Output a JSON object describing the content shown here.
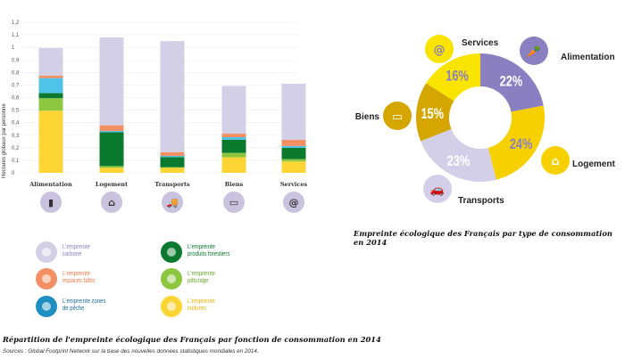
{
  "chart_data": [
    {
      "type": "bar",
      "stacked": true,
      "ylabel": "Hectares globaux par personne",
      "ylim": [
        0,
        1.2
      ],
      "yticks": [
        "0",
        "0,1",
        "0,2",
        "0,3",
        "0,4",
        "0,5",
        "0,6",
        "0,7",
        "0,8",
        "0,9",
        "1",
        "1,1",
        "1,2"
      ],
      "categories": [
        "Alimentation",
        "Logement",
        "Transports",
        "Biens",
        "Services"
      ],
      "category_icons": [
        "carrot-icon",
        "house-icon",
        "truck-icon",
        "monitor-icon",
        "at-icon"
      ],
      "series": [
        {
          "name": "L'empreinte cultures",
          "color": "#fcd535",
          "values": [
            0.495,
            0.04,
            0.04,
            0.124,
            0.09
          ]
        },
        {
          "name": "L'empreinte pâturage",
          "color": "#8dc63f",
          "values": [
            0.1,
            0.014,
            0.005,
            0.035,
            0.02
          ]
        },
        {
          "name": "L'empreinte produits forestiers",
          "color": "#0b7a2e",
          "values": [
            0.04,
            0.27,
            0.08,
            0.105,
            0.09
          ]
        },
        {
          "name": "L'empreinte zones de pêche",
          "color": "#4fc3e8",
          "values": [
            0.12,
            0.01,
            0.01,
            0.02,
            0.014
          ]
        },
        {
          "name": "L'empreinte espaces bâtis",
          "color": "#f39063",
          "values": [
            0.02,
            0.045,
            0.03,
            0.028,
            0.05
          ]
        },
        {
          "name": "L'empreinte carbone",
          "color": "#d3cfe6",
          "values": [
            0.22,
            0.7,
            0.885,
            0.38,
            0.446
          ]
        }
      ],
      "title": "Répartition de l'empreinte écologique des Français par fonction de consommation en 2014"
    },
    {
      "type": "pie",
      "donut": true,
      "slices": [
        {
          "label": "Alimentation",
          "value": 22,
          "text": "22%",
          "color": "#8a7fc1",
          "icon": "carrot-icon"
        },
        {
          "label": "Logement",
          "value": 24,
          "text": "24%",
          "color": "#f7d000",
          "icon": "house-icon"
        },
        {
          "label": "Transports",
          "value": 23,
          "text": "23%",
          "color": "#d4cfe8",
          "icon": "car-icon"
        },
        {
          "label": "Biens",
          "value": 15,
          "text": "15%",
          "color": "#d6a600",
          "icon": "monitor-icon"
        },
        {
          "label": "Services",
          "value": 16,
          "text": "16%",
          "color": "#f9e400",
          "icon": "at-icon"
        }
      ],
      "title": "Empreinte écologique des Français par type de consommation en 2014"
    }
  ],
  "legend": [
    {
      "l1": "L'empreinte",
      "l2": "carbone",
      "color": "#8a7fc1",
      "bg": "#d3cfe6",
      "icon": "cooling-tower-icon"
    },
    {
      "l1": "L'empreinte",
      "l2": "espaces bâtis",
      "color": "#ef7a4a",
      "bg": "#f39063",
      "icon": "streetlight-icon"
    },
    {
      "l1": "L'empreinte zones",
      "l2": "de pêche",
      "color": "#1b6f9a",
      "bg": "#1e8fc0",
      "icon": "boat-icon"
    },
    {
      "l1": "L'empreinte",
      "l2": "produits forestiers",
      "color": "#0b7a2e",
      "bg": "#0b7a2e",
      "icon": "barn-icon"
    },
    {
      "l1": "L'empreinte",
      "l2": "pâturage",
      "color": "#6aa52b",
      "bg": "#8dc63f",
      "icon": "cow-icon"
    },
    {
      "l1": "L'empreinte",
      "l2": "cultures",
      "color": "#e0b400",
      "bg": "#fcd535",
      "icon": "tractor-icon"
    }
  ],
  "sources": "Sources : Global Footprint Network sur la base des nouvelles données statistiques mondiales en 2014."
}
